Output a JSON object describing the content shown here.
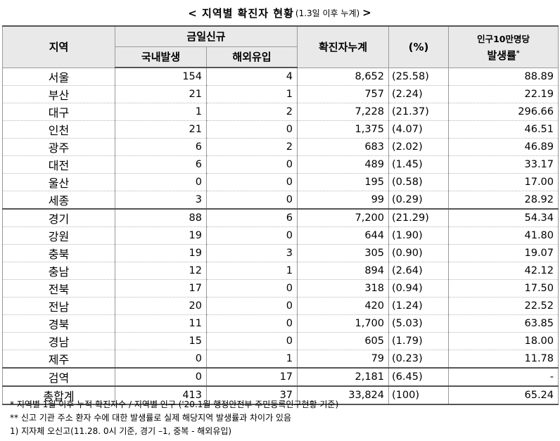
{
  "title": {
    "main": "< 지역별 확진자 현황",
    "sub": "(1.3일 이후 누계)",
    "end": " >"
  },
  "headers": {
    "region": "지역",
    "new_today": "금일신규",
    "domestic": "국내발생",
    "overseas": "해외유입",
    "cumulative": "확진자누계",
    "percent": "(%)",
    "per100k_line1": "인구10만명당",
    "per100k_line2": "발생률",
    "per100k_mark": "*"
  },
  "rows": [
    {
      "region": "서울",
      "domestic": "154",
      "overseas": "4",
      "cumulative": "8,652",
      "percent": "(25.58)",
      "rate": "88.89"
    },
    {
      "region": "부산",
      "domestic": "21",
      "overseas": "1",
      "cumulative": "757",
      "percent": "(2.24)",
      "rate": "22.19"
    },
    {
      "region": "대구",
      "domestic": "1",
      "overseas": "2",
      "cumulative": "7,228",
      "percent": "(21.37)",
      "rate": "296.66"
    },
    {
      "region": "인천",
      "domestic": "21",
      "overseas": "0",
      "cumulative": "1,375",
      "percent": "(4.07)",
      "rate": "46.51"
    },
    {
      "region": "광주",
      "domestic": "6",
      "overseas": "2",
      "cumulative": "683",
      "percent": "(2.02)",
      "rate": "46.89"
    },
    {
      "region": "대전",
      "domestic": "6",
      "overseas": "0",
      "cumulative": "489",
      "percent": "(1.45)",
      "rate": "33.17"
    },
    {
      "region": "울산",
      "domestic": "0",
      "overseas": "0",
      "cumulative": "195",
      "percent": "(0.58)",
      "rate": "17.00"
    },
    {
      "region": "세종",
      "domestic": "3",
      "overseas": "0",
      "cumulative": "99",
      "percent": "(0.29)",
      "rate": "28.92"
    },
    {
      "region": "경기",
      "domestic": "88",
      "overseas": "6",
      "cumulative": "7,200",
      "percent": "(21.29)",
      "rate": "54.34"
    },
    {
      "region": "강원",
      "domestic": "19",
      "overseas": "0",
      "cumulative": "644",
      "percent": "(1.90)",
      "rate": "41.80"
    },
    {
      "region": "충북",
      "domestic": "19",
      "overseas": "3",
      "cumulative": "305",
      "percent": "(0.90)",
      "rate": "19.07"
    },
    {
      "region": "충남",
      "domestic": "12",
      "overseas": "1",
      "cumulative": "894",
      "percent": "(2.64)",
      "rate": "42.12"
    },
    {
      "region": "전북",
      "domestic": "17",
      "overseas": "0",
      "cumulative": "318",
      "percent": "(0.94)",
      "rate": "17.50"
    },
    {
      "region": "전남",
      "domestic": "20",
      "overseas": "0",
      "cumulative": "420",
      "percent": "(1.24)",
      "rate": "22.52"
    },
    {
      "region": "경북",
      "domestic": "11",
      "overseas": "0",
      "cumulative": "1,700",
      "percent": "(5.03)",
      "rate": "63.85"
    },
    {
      "region": "경남",
      "domestic": "15",
      "overseas": "0",
      "cumulative": "605",
      "percent": "(1.79)",
      "rate": "18.00"
    },
    {
      "region": "제주",
      "domestic": "0",
      "overseas": "1",
      "cumulative": "79",
      "percent": "(0.23)",
      "rate": "11.78"
    },
    {
      "region": "검역",
      "domestic": "0",
      "overseas": "17",
      "cumulative": "2,181",
      "percent": "(6.45)",
      "rate": "-"
    },
    {
      "region": "총합계",
      "domestic": "413",
      "overseas": "37",
      "cumulative": "33,824",
      "percent": "(100)",
      "rate": "65.24"
    }
  ],
  "notes": [
    "* 지역별 1월 이후 누적 확진자수 / 지역별 인구 ('20.1월 행정안전부 주민등록인구현황 기준)",
    "** 신고 기관 주소 환자 수에 대한 발생률로 실제 해당지역 발생률과 차이가 있음",
    "1) 지자체 오신고(11.28. 0시 기준, 경기 –1, 중복 - 해외유입)"
  ]
}
